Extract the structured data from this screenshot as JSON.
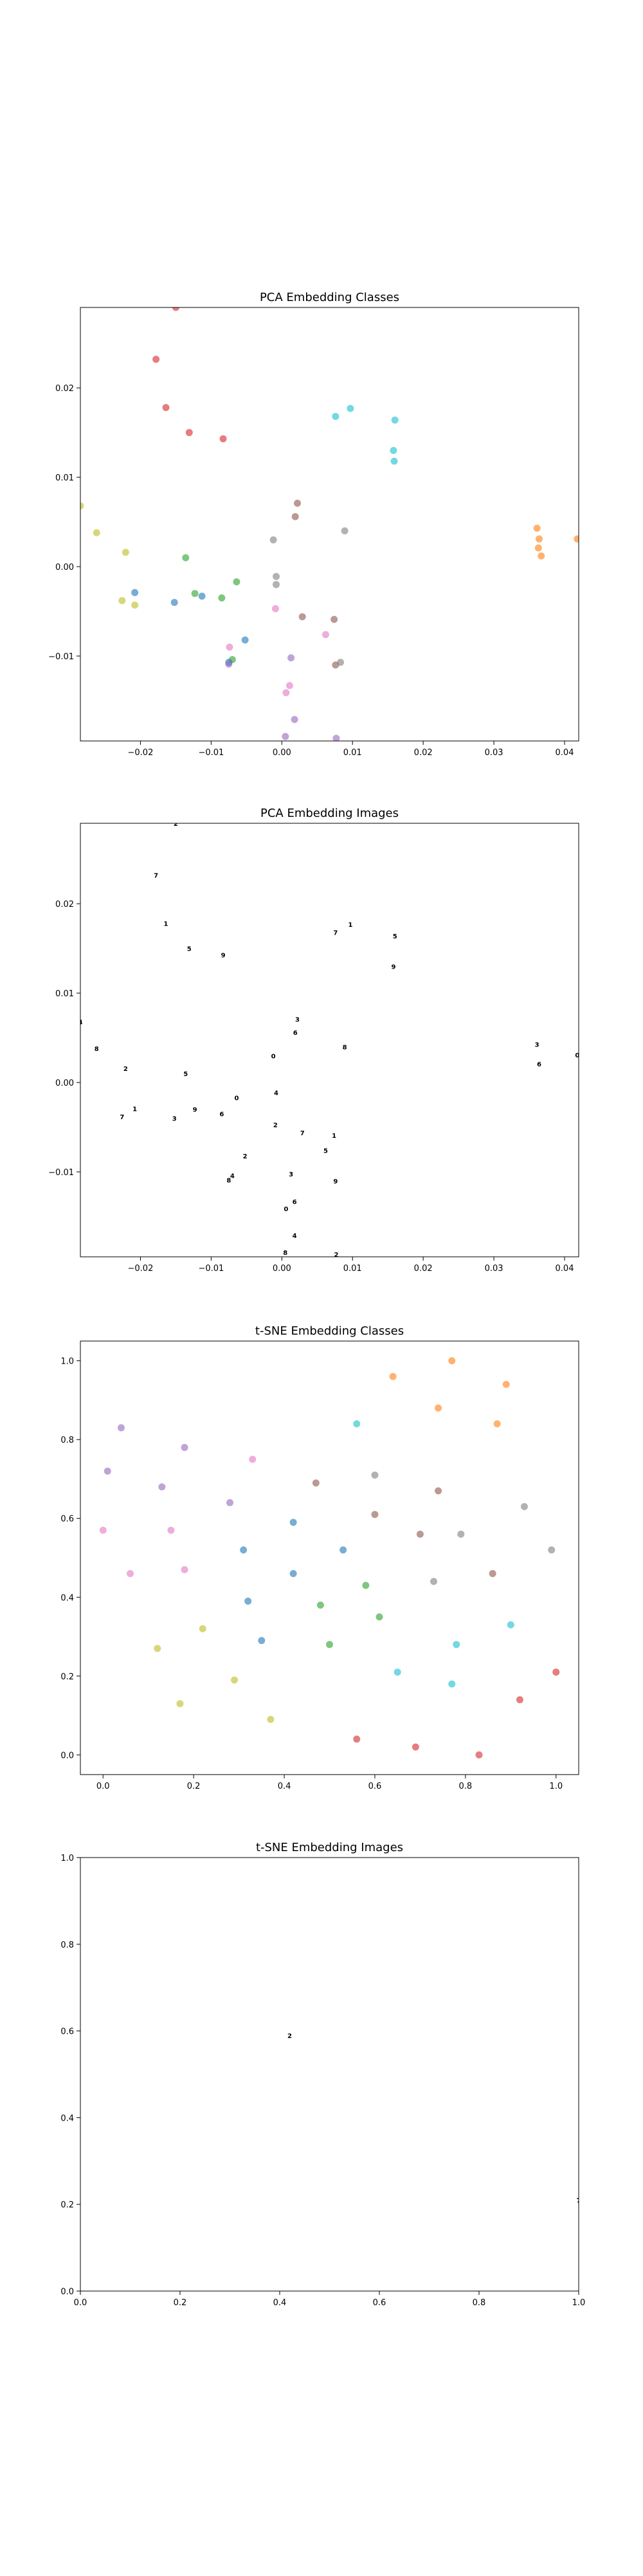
{
  "chart_data": [
    {
      "type": "scatter",
      "title": "PCA Embedding Classes",
      "xlim": [
        -0.0285,
        0.042
      ],
      "ylim": [
        -0.0195,
        0.029
      ],
      "xticks": [
        {
          "value": -0.02,
          "label": "−0.02"
        },
        {
          "value": -0.01,
          "label": "−0.01"
        },
        {
          "value": 0.0,
          "label": "0.00"
        },
        {
          "value": 0.01,
          "label": "0.01"
        },
        {
          "value": 0.02,
          "label": "0.02"
        },
        {
          "value": 0.03,
          "label": "0.03"
        },
        {
          "value": 0.04,
          "label": "0.04"
        }
      ],
      "yticks": [
        {
          "value": -0.01,
          "label": "−0.01"
        },
        {
          "value": 0.0,
          "label": "0.00"
        },
        {
          "value": 0.01,
          "label": "0.01"
        },
        {
          "value": 0.02,
          "label": "0.02"
        }
      ],
      "grid": false,
      "series": [
        {
          "color": "#d62728",
          "points": [
            [
              -0.015,
              0.029
            ],
            [
              -0.0178,
              0.0232
            ],
            [
              -0.0164,
              0.0178
            ],
            [
              -0.0131,
              0.015
            ],
            [
              -0.0083,
              0.0143
            ]
          ]
        },
        {
          "color": "#ff7f0e",
          "points": [
            [
              0.0361,
              0.0043
            ],
            [
              0.0364,
              0.0031
            ],
            [
              0.0363,
              0.0021
            ],
            [
              0.0367,
              0.0012
            ],
            [
              0.0418,
              0.0031
            ]
          ]
        },
        {
          "color": "#bcbd22",
          "points": [
            [
              -0.0285,
              0.0068
            ],
            [
              -0.0262,
              0.0038
            ],
            [
              -0.0221,
              0.0016
            ],
            [
              -0.0226,
              -0.0038
            ],
            [
              -0.0208,
              -0.0043
            ]
          ]
        },
        {
          "color": "#2ca02c",
          "points": [
            [
              -0.0136,
              0.001
            ],
            [
              -0.0123,
              -0.003
            ],
            [
              -0.0085,
              -0.0035
            ],
            [
              -0.0064,
              -0.0017
            ],
            [
              -0.007,
              -0.0104
            ]
          ]
        },
        {
          "color": "#1f77b4",
          "points": [
            [
              -0.0208,
              -0.0029
            ],
            [
              -0.0152,
              -0.004
            ],
            [
              -0.0113,
              -0.0033
            ],
            [
              -0.0052,
              -0.0082
            ],
            [
              -0.0075,
              -0.0107
            ]
          ]
        },
        {
          "color": "#17becf",
          "points": [
            [
              0.0076,
              0.0168
            ],
            [
              0.0097,
              0.0177
            ],
            [
              0.016,
              0.0164
            ],
            [
              0.0158,
              0.013
            ],
            [
              0.0159,
              0.0118
            ]
          ]
        },
        {
          "color": "#8c564b",
          "points": [
            [
              0.0022,
              0.0071
            ],
            [
              0.0019,
              0.0056
            ],
            [
              0.0029,
              -0.0056
            ],
            [
              0.0074,
              -0.0059
            ],
            [
              0.0076,
              -0.011
            ]
          ]
        },
        {
          "color": "#7f7f7f",
          "points": [
            [
              -0.0012,
              0.003
            ],
            [
              -0.0008,
              -0.0011
            ],
            [
              -0.0008,
              -0.002
            ],
            [
              0.0089,
              0.004
            ],
            [
              0.0083,
              -0.0107
            ]
          ]
        },
        {
          "color": "#e377c2",
          "points": [
            [
              -0.0074,
              -0.009
            ],
            [
              -0.0009,
              -0.0047
            ],
            [
              0.0006,
              -0.0141
            ],
            [
              0.0062,
              -0.0076
            ],
            [
              0.0011,
              -0.0133
            ]
          ]
        },
        {
          "color": "#9467bd",
          "points": [
            [
              -0.0075,
              -0.0109
            ],
            [
              0.0013,
              -0.0102
            ],
            [
              0.0018,
              -0.0171
            ],
            [
              0.0005,
              -0.019
            ],
            [
              0.0077,
              -0.0192
            ]
          ]
        }
      ]
    },
    {
      "type": "scatter",
      "title": "PCA Embedding Images",
      "xlim": [
        -0.0285,
        0.042
      ],
      "ylim": [
        -0.0195,
        0.029
      ],
      "xticks": [
        {
          "value": -0.02,
          "label": "−0.02"
        },
        {
          "value": -0.01,
          "label": "−0.01"
        },
        {
          "value": 0.0,
          "label": "0.00"
        },
        {
          "value": 0.01,
          "label": "0.01"
        },
        {
          "value": 0.02,
          "label": "0.02"
        },
        {
          "value": 0.03,
          "label": "0.03"
        },
        {
          "value": 0.04,
          "label": "0.04"
        }
      ],
      "yticks": [
        {
          "value": -0.01,
          "label": "−0.01"
        },
        {
          "value": 0.0,
          "label": "0.00"
        },
        {
          "value": 0.01,
          "label": "0.01"
        },
        {
          "value": 0.02,
          "label": "0.02"
        }
      ],
      "grid": false,
      "marker": "digit-image",
      "points": [
        [
          -0.015,
          0.029
        ],
        [
          -0.0178,
          0.0232
        ],
        [
          -0.0164,
          0.0178
        ],
        [
          -0.0131,
          0.015
        ],
        [
          -0.0083,
          0.0143
        ],
        [
          0.0361,
          0.0043
        ],
        [
          0.0364,
          0.0021
        ],
        [
          0.0418,
          0.0031
        ],
        [
          -0.0285,
          0.0068
        ],
        [
          -0.0262,
          0.0038
        ],
        [
          -0.0221,
          0.0016
        ],
        [
          -0.0226,
          -0.0038
        ],
        [
          -0.0208,
          -0.0029
        ],
        [
          -0.0136,
          0.001
        ],
        [
          -0.0123,
          -0.003
        ],
        [
          -0.0152,
          -0.004
        ],
        [
          -0.0085,
          -0.0035
        ],
        [
          -0.0064,
          -0.0017
        ],
        [
          -0.007,
          -0.0104
        ],
        [
          -0.0075,
          -0.0109
        ],
        [
          -0.0052,
          -0.0082
        ],
        [
          0.0076,
          0.0168
        ],
        [
          0.0097,
          0.0177
        ],
        [
          0.016,
          0.0164
        ],
        [
          0.0158,
          0.013
        ],
        [
          0.0022,
          0.0071
        ],
        [
          0.0019,
          0.0056
        ],
        [
          -0.0012,
          0.003
        ],
        [
          -0.0008,
          -0.0011
        ],
        [
          0.0089,
          0.004
        ],
        [
          -0.0009,
          -0.0047
        ],
        [
          0.0029,
          -0.0056
        ],
        [
          0.0074,
          -0.0059
        ],
        [
          0.0062,
          -0.0076
        ],
        [
          0.0076,
          -0.011
        ],
        [
          0.0013,
          -0.0102
        ],
        [
          0.0018,
          -0.0133
        ],
        [
          0.0006,
          -0.0141
        ],
        [
          0.0018,
          -0.0171
        ],
        [
          0.0005,
          -0.019
        ],
        [
          0.0077,
          -0.0192
        ]
      ]
    },
    {
      "type": "scatter",
      "title": "t-SNE Embedding Classes",
      "xlim": [
        -0.05,
        1.05
      ],
      "ylim": [
        -0.05,
        1.05
      ],
      "xticks": [
        {
          "value": 0.0,
          "label": "0.0"
        },
        {
          "value": 0.2,
          "label": "0.2"
        },
        {
          "value": 0.4,
          "label": "0.4"
        },
        {
          "value": 0.6,
          "label": "0.6"
        },
        {
          "value": 0.8,
          "label": "0.8"
        },
        {
          "value": 1.0,
          "label": "1.0"
        }
      ],
      "yticks": [
        {
          "value": 0.0,
          "label": "0.0"
        },
        {
          "value": 0.2,
          "label": "0.2"
        },
        {
          "value": 0.4,
          "label": "0.4"
        },
        {
          "value": 0.6,
          "label": "0.6"
        },
        {
          "value": 0.8,
          "label": "0.8"
        },
        {
          "value": 1.0,
          "label": "1.0"
        }
      ],
      "grid": false,
      "series": [
        {
          "color": "#ff7f0e",
          "points": [
            [
              0.77,
              1.0
            ],
            [
              0.64,
              0.96
            ],
            [
              0.89,
              0.94
            ],
            [
              0.74,
              0.88
            ],
            [
              0.87,
              0.84
            ]
          ]
        },
        {
          "color": "#9467bd",
          "points": [
            [
              0.04,
              0.83
            ],
            [
              0.18,
              0.78
            ],
            [
              0.01,
              0.72
            ],
            [
              0.13,
              0.68
            ],
            [
              0.28,
              0.64
            ]
          ]
        },
        {
          "color": "#17becf",
          "points": [
            [
              0.56,
              0.84
            ],
            [
              0.65,
              0.21
            ],
            [
              0.77,
              0.18
            ],
            [
              0.78,
              0.28
            ],
            [
              0.9,
              0.33
            ]
          ]
        },
        {
          "color": "#8c564b",
          "points": [
            [
              0.47,
              0.69
            ],
            [
              0.6,
              0.61
            ],
            [
              0.74,
              0.67
            ],
            [
              0.7,
              0.56
            ],
            [
              0.86,
              0.46
            ]
          ]
        },
        {
          "color": "#7f7f7f",
          "points": [
            [
              0.6,
              0.71
            ],
            [
              0.73,
              0.44
            ],
            [
              0.79,
              0.56
            ],
            [
              0.93,
              0.63
            ],
            [
              0.99,
              0.52
            ]
          ]
        },
        {
          "color": "#e377c2",
          "points": [
            [
              0.33,
              0.75
            ],
            [
              0.0,
              0.57
            ],
            [
              0.15,
              0.57
            ],
            [
              0.06,
              0.46
            ],
            [
              0.18,
              0.47
            ]
          ]
        },
        {
          "color": "#1f77b4",
          "points": [
            [
              0.42,
              0.59
            ],
            [
              0.31,
              0.52
            ],
            [
              0.53,
              0.52
            ],
            [
              0.42,
              0.46
            ],
            [
              0.32,
              0.39
            ],
            [
              0.35,
              0.29
            ]
          ]
        },
        {
          "color": "#2ca02c",
          "points": [
            [
              0.48,
              0.38
            ],
            [
              0.58,
              0.43
            ],
            [
              0.61,
              0.35
            ],
            [
              0.5,
              0.28
            ]
          ]
        },
        {
          "color": "#bcbd22",
          "points": [
            [
              0.22,
              0.32
            ],
            [
              0.12,
              0.27
            ],
            [
              0.29,
              0.19
            ],
            [
              0.17,
              0.13
            ],
            [
              0.37,
              0.09
            ]
          ]
        },
        {
          "color": "#d62728",
          "points": [
            [
              0.56,
              0.04
            ],
            [
              0.69,
              0.02
            ],
            [
              0.83,
              0.0
            ],
            [
              0.92,
              0.14
            ],
            [
              1.0,
              0.21
            ]
          ]
        }
      ]
    },
    {
      "type": "scatter",
      "title": "t-SNE Embedding Images",
      "xlim": [
        0.0,
        1.0
      ],
      "ylim": [
        0.0,
        1.0
      ],
      "xticks": [
        {
          "value": 0.0,
          "label": "0.0"
        },
        {
          "value": 0.2,
          "label": "0.2"
        },
        {
          "value": 0.4,
          "label": "0.4"
        },
        {
          "value": 0.6,
          "label": "0.6"
        },
        {
          "value": 0.8,
          "label": "0.8"
        },
        {
          "value": 1.0,
          "label": "1.0"
        }
      ],
      "yticks": [
        {
          "value": 0.0,
          "label": "0.0"
        },
        {
          "value": 0.2,
          "label": "0.2"
        },
        {
          "value": 0.4,
          "label": "0.4"
        },
        {
          "value": 0.6,
          "label": "0.6"
        },
        {
          "value": 0.8,
          "label": "0.8"
        },
        {
          "value": 1.0,
          "label": "1.0"
        }
      ],
      "grid": false,
      "marker": "digit-image",
      "points": [
        [
          0.42,
          0.59
        ],
        [
          1.0,
          0.21
        ]
      ]
    }
  ]
}
